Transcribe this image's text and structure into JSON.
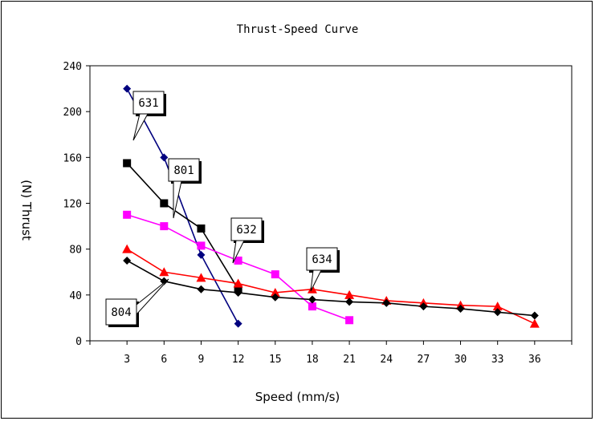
{
  "chart_data": {
    "type": "line",
    "title": "Thrust-Speed Curve",
    "xlabel": "Speed (mm/s)",
    "ylabel": "(N) Thrust",
    "x_ticks": [
      3,
      6,
      9,
      12,
      15,
      18,
      21,
      24,
      27,
      30,
      33,
      36
    ],
    "y_ticks": [
      0,
      40,
      80,
      120,
      160,
      200,
      240
    ],
    "xlim": [
      0,
      39
    ],
    "ylim": [
      0,
      240
    ],
    "grid": false,
    "legend": "callouts",
    "series": [
      {
        "name": "631",
        "color": "#00007f",
        "marker": "diamond",
        "x": [
          3,
          6,
          9,
          12
        ],
        "y": [
          220,
          160,
          75,
          15
        ]
      },
      {
        "name": "801",
        "color": "#000000",
        "marker": "square",
        "x": [
          3,
          6,
          9,
          12
        ],
        "y": [
          155,
          120,
          98,
          45
        ]
      },
      {
        "name": "632",
        "color": "#ff00ff",
        "marker": "square",
        "x": [
          3,
          6,
          9,
          12,
          15,
          18,
          21
        ],
        "y": [
          110,
          100,
          83,
          70,
          58,
          30,
          18
        ]
      },
      {
        "name": "634",
        "color": "#ff0000",
        "marker": "triangle",
        "x": [
          3,
          6,
          9,
          12,
          15,
          18,
          21,
          24,
          27,
          30,
          33,
          36
        ],
        "y": [
          80,
          60,
          55,
          50,
          42,
          45,
          40,
          35,
          33,
          31,
          30,
          15
        ]
      },
      {
        "name": "804",
        "color": "#000000",
        "marker": "diamond",
        "x": [
          3,
          6,
          9,
          12,
          15,
          18,
          21,
          24,
          27,
          30,
          33,
          36
        ],
        "y": [
          70,
          52,
          45,
          42,
          38,
          36,
          34,
          33,
          30,
          28,
          25,
          22
        ]
      }
    ]
  }
}
